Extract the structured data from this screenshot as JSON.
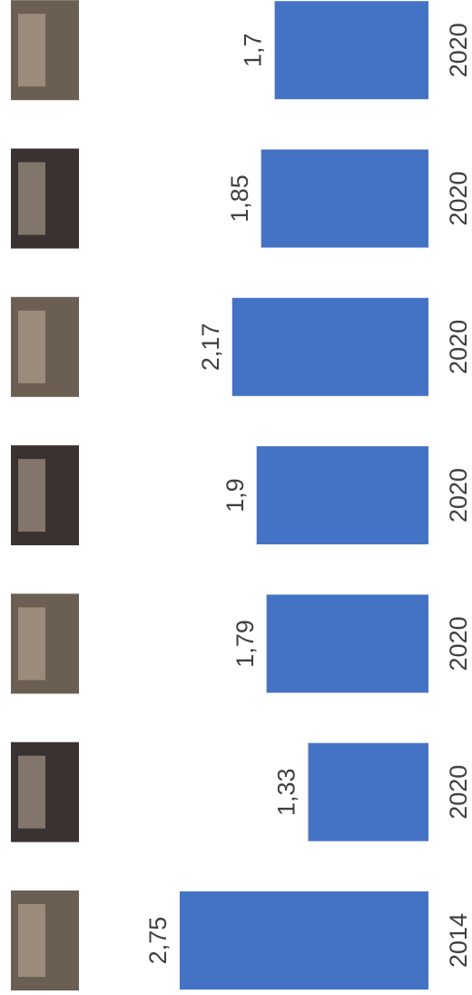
{
  "chart_data": {
    "type": "bar",
    "orientation": "horizontal-rotated",
    "categories": [
      "2014",
      "2020",
      "2020",
      "2020",
      "2020",
      "2020",
      "2020"
    ],
    "values": [
      2.75,
      1.33,
      1.79,
      1.9,
      2.17,
      1.85,
      1.7
    ],
    "value_labels": [
      "2,75",
      "1,33",
      "1,79",
      "1,9",
      "2,17",
      "1,85",
      "1,7"
    ],
    "color": "#4472c4"
  }
}
